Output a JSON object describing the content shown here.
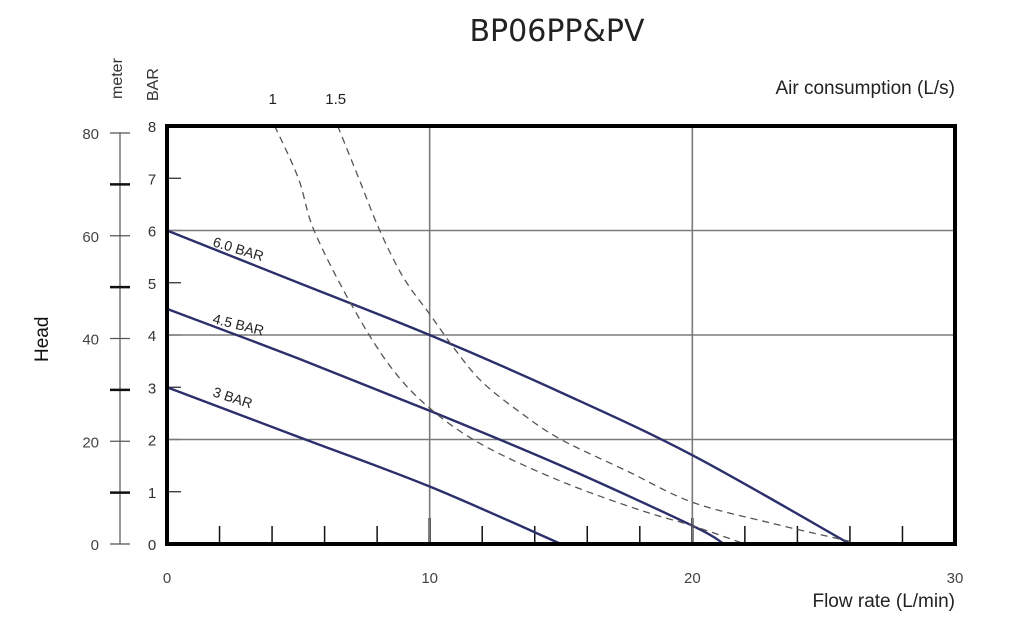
{
  "title": "BP06PP&PV",
  "axes": {
    "left_unit_meter": "meter",
    "left_unit_bar": "BAR",
    "y_label": "Head",
    "x_label": "Flow rate (L/min)",
    "top_label": "Air consumption (L/s)",
    "meter_ticks": [
      "0",
      "20",
      "40",
      "60",
      "80"
    ],
    "bar_ticks": [
      "0",
      "1",
      "2",
      "3",
      "4",
      "5",
      "6",
      "7",
      "8"
    ],
    "x_ticks": [
      "0",
      "10",
      "20",
      "30"
    ],
    "air_ticks": [
      "1",
      "1.5"
    ]
  },
  "colors": {
    "pressure_line": "#2b2f6b",
    "dashed_line": "#555555",
    "grid": "#7a7a7a",
    "frame": "#000000"
  },
  "chart_data": {
    "type": "line",
    "title": "BP06PP&PV",
    "xlabel": "Flow rate (L/min)",
    "ylabel": "Head",
    "y_units": [
      "BAR",
      "meter"
    ],
    "secondary_top_label": "Air consumption (L/s)",
    "xlim": [
      0,
      30
    ],
    "ylim_bar": [
      0,
      8
    ],
    "ylim_meter": [
      0,
      80
    ],
    "grid": true,
    "series": [
      {
        "name": "6.0 BAR",
        "style": "solid",
        "x": [
          0,
          5,
          10,
          15,
          20,
          26
        ],
        "y": [
          6.0,
          5.0,
          4.0,
          2.9,
          1.7,
          0
        ]
      },
      {
        "name": "4.5 BAR",
        "style": "solid",
        "x": [
          0,
          5,
          10,
          15,
          20,
          21.2
        ],
        "y": [
          4.5,
          3.55,
          2.55,
          1.5,
          0.35,
          0
        ]
      },
      {
        "name": "3 BAR",
        "style": "solid",
        "x": [
          0,
          5,
          10,
          15
        ],
        "y": [
          3.0,
          2.05,
          1.1,
          0
        ]
      },
      {
        "name": "1 L/s air",
        "style": "dashed",
        "x": [
          4.1,
          5,
          5.6,
          7,
          8.5,
          10,
          12,
          15,
          18,
          20,
          22
        ],
        "y": [
          8,
          7.0,
          6.0,
          4.6,
          3.4,
          2.6,
          1.9,
          1.2,
          0.65,
          0.35,
          0
        ]
      },
      {
        "name": "1.5 L/s air",
        "style": "dashed",
        "x": [
          6.5,
          7.3,
          8.1,
          9,
          10,
          11,
          12,
          13.5,
          15,
          17.5,
          20,
          23,
          26
        ],
        "y": [
          8,
          7.0,
          6.0,
          5.1,
          4.4,
          3.7,
          3.1,
          2.5,
          2.0,
          1.4,
          0.8,
          0.4,
          0.05
        ]
      }
    ],
    "annotations": [
      "6.0 BAR",
      "4.5 BAR",
      "3 BAR",
      "1",
      "1.5"
    ]
  }
}
